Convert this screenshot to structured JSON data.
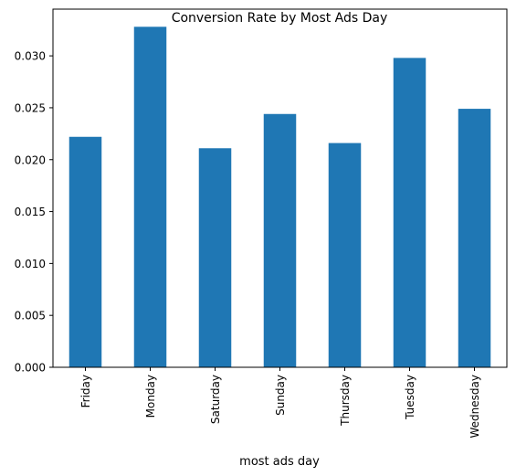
{
  "chart_data": {
    "type": "bar",
    "title": "Conversion Rate by Most Ads Day",
    "xlabel": "most ads day",
    "ylabel": "",
    "categories": [
      "Friday",
      "Monday",
      "Saturday",
      "Sunday",
      "Thursday",
      "Tuesday",
      "Wednesday"
    ],
    "values": [
      0.0222,
      0.0328,
      0.0211,
      0.0244,
      0.0216,
      0.0298,
      0.0249
    ],
    "ylim": [
      0,
      0.0345
    ],
    "yticks": [
      "0.000",
      "0.005",
      "0.010",
      "0.015",
      "0.020",
      "0.025",
      "0.030"
    ],
    "grid": false,
    "bar_color": "#1f77b4"
  }
}
